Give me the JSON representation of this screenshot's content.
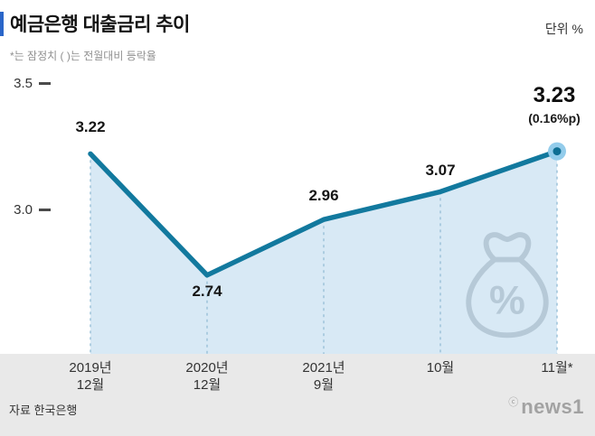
{
  "header": {
    "title": "예금은행 대출금리 추이",
    "unit": "단위 %",
    "note": "*는 잠정치 ( )는 전월대비 등락율"
  },
  "chart_data": {
    "type": "line",
    "title": "예금은행 대출금리 추이",
    "unit": "%",
    "categories": [
      "2019년 12월",
      "2020년 12월",
      "2021년 9월",
      "10월",
      "11월*"
    ],
    "values": [
      3.22,
      2.74,
      2.96,
      3.07,
      3.23
    ],
    "point_labels": [
      "3.22",
      "2.74",
      "2.96",
      "3.07",
      "3.23"
    ],
    "yticks": [
      3.5,
      3.0
    ],
    "ylim": [
      2.6,
      3.5
    ],
    "grid": "dashed-vertical-guides",
    "legend": "none",
    "highlight": {
      "index": 4,
      "label": "3.23",
      "sub_label": "(0.16%p)"
    },
    "colors": {
      "line": "#12799e",
      "area": "#d8e9f5",
      "dashed": "#9dc3da",
      "marker_outer": "#93cceb",
      "marker_inner": "#0e6e93"
    }
  },
  "axis": {
    "y_ticks": [
      "3.5",
      "3.0"
    ],
    "x_labels": [
      {
        "line1": "2019년",
        "line2": "12월"
      },
      {
        "line1": "2020년",
        "line2": "12월"
      },
      {
        "line1": "2021년",
        "line2": "9월"
      },
      {
        "line1": "10월",
        "line2": ""
      },
      {
        "line1": "11월*",
        "line2": ""
      }
    ]
  },
  "icons": {
    "money_bag_percent": "%",
    "money_bag_color": "#b6c9d7"
  },
  "footer": {
    "source": "자료 한국은행",
    "credit_symbol": "ⓒ",
    "credit_name": "news1"
  }
}
